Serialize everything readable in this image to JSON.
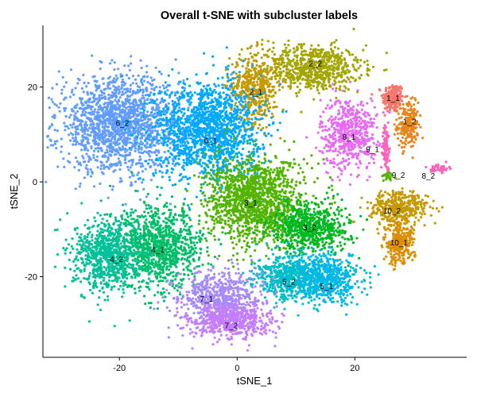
{
  "chart_data": {
    "type": "scatter",
    "title": "Overall t-SNE with subcluster labels",
    "xlabel": "tSNE_1",
    "ylabel": "tSNE_2",
    "xlim": [
      -33,
      39
    ],
    "ylim": [
      -37,
      33
    ],
    "x_ticks": [
      -20,
      0,
      20
    ],
    "y_ticks": [
      20,
      0,
      -20
    ],
    "grid": false,
    "legend": "none",
    "clusters": [
      {
        "label": "1_1",
        "color": "#F8766D",
        "cx": 26.5,
        "cy": 17.7,
        "sx": 1.2,
        "sy": 2.1,
        "n": 220
      },
      {
        "label": "1_2",
        "color": "#E7861B",
        "cx": 29.0,
        "cy": 12.0,
        "sx": 1.2,
        "sy": 3.2,
        "n": 220
      },
      {
        "label": "2_2",
        "color": "#A3A500",
        "cx": 13.0,
        "cy": 24.0,
        "sx": 5.5,
        "sy": 3.2,
        "n": 700
      },
      {
        "label": "2_1",
        "color": "#C49A00",
        "cx": 3.0,
        "cy": 20.0,
        "sx": 2.8,
        "sy": 5.0,
        "n": 450
      },
      {
        "label": "8_1",
        "color": "#E76BF3",
        "cx": 19.0,
        "cy": 10.3,
        "sx": 3.2,
        "sy": 5.0,
        "n": 550
      },
      {
        "label": "9_1",
        "color": "#FF62BC",
        "cx": 25.3,
        "cy": 7.0,
        "sx": 0.4,
        "sy": 3.0,
        "n": 90
      },
      {
        "label": "9_2",
        "color": "#53B400",
        "cx": 25.5,
        "cy": 1.2,
        "sx": 0.7,
        "sy": 0.6,
        "n": 30
      },
      {
        "label": "8_2",
        "color": "#FF62BC",
        "cx": 34.5,
        "cy": 2.9,
        "sx": 1.0,
        "sy": 0.6,
        "n": 50
      },
      {
        "label": "6_2",
        "color": "#619CFF",
        "cx": -20.0,
        "cy": 12.0,
        "sx": 7.0,
        "sy": 6.5,
        "n": 1700
      },
      {
        "label": "6_1",
        "color": "#00A9FF",
        "cx": -5.0,
        "cy": 11.0,
        "sx": 6.0,
        "sy": 7.0,
        "n": 1500
      },
      {
        "label": "3_1",
        "color": "#53B400",
        "cx": 3.0,
        "cy": -4.0,
        "sx": 5.5,
        "sy": 6.0,
        "n": 1400
      },
      {
        "label": "3_2",
        "color": "#00B81F",
        "cx": 12.5,
        "cy": -9.5,
        "sx": 4.5,
        "sy": 3.5,
        "n": 650
      },
      {
        "label": "10_2",
        "color": "#C49A00",
        "cx": 27.5,
        "cy": -5.5,
        "sx": 3.2,
        "sy": 2.5,
        "n": 380
      },
      {
        "label": "10_1",
        "color": "#DB8E00",
        "cx": 27.5,
        "cy": -13.0,
        "sx": 1.8,
        "sy": 3.0,
        "n": 260
      },
      {
        "label": "4_1",
        "color": "#00BE67",
        "cx": -13.5,
        "cy": -14.0,
        "sx": 5.0,
        "sy": 5.5,
        "n": 1050
      },
      {
        "label": "4_2",
        "color": "#00C19A",
        "cx": -22.0,
        "cy": -15.5,
        "sx": 3.8,
        "sy": 5.0,
        "n": 750
      },
      {
        "label": "5_2",
        "color": "#00BFC4",
        "cx": 9.0,
        "cy": -20.0,
        "sx": 4.0,
        "sy": 3.2,
        "n": 550
      },
      {
        "label": "5_1",
        "color": "#00B8E7",
        "cx": 15.0,
        "cy": -20.5,
        "sx": 4.0,
        "sy": 3.2,
        "n": 550
      },
      {
        "label": "7_1",
        "color": "#A58AFF",
        "cx": -3.0,
        "cy": -24.5,
        "sx": 4.5,
        "sy": 4.0,
        "n": 650
      },
      {
        "label": "7_2",
        "color": "#C77CFF",
        "cx": -1.0,
        "cy": -29.5,
        "sx": 4.8,
        "sy": 2.6,
        "n": 500
      }
    ],
    "labels": [
      {
        "text": "1_1",
        "x": 26.5,
        "y": 17.7
      },
      {
        "text": "1_2",
        "x": 29.3,
        "y": 12.7
      },
      {
        "text": "2_2",
        "x": 13.3,
        "y": 25.0
      },
      {
        "text": "2_1",
        "x": 3.2,
        "y": 18.9
      },
      {
        "text": "8_1",
        "x": 19.0,
        "y": 9.5
      },
      {
        "text": "9_1",
        "x": 23.0,
        "y": 6.9
      },
      {
        "text": "9_2",
        "x": 27.4,
        "y": 1.4
      },
      {
        "text": "8_2",
        "x": 32.5,
        "y": 1.3
      },
      {
        "text": "6_2",
        "x": -19.5,
        "y": 12.4
      },
      {
        "text": "6_1",
        "x": -4.5,
        "y": 8.7
      },
      {
        "text": "3_1",
        "x": 2.3,
        "y": -4.4
      },
      {
        "text": "3_2",
        "x": 12.3,
        "y": -9.6
      },
      {
        "text": "10_2",
        "x": 26.3,
        "y": -6.1
      },
      {
        "text": "10_1",
        "x": 27.5,
        "y": -12.8
      },
      {
        "text": "4_1",
        "x": -13.5,
        "y": -14.3
      },
      {
        "text": "4_2",
        "x": -20.5,
        "y": -16.3
      },
      {
        "text": "5_2",
        "x": 8.8,
        "y": -21.1
      },
      {
        "text": "5_1",
        "x": 15.2,
        "y": -22.0
      },
      {
        "text": "7_1",
        "x": -5.2,
        "y": -24.7
      },
      {
        "text": "7_2",
        "x": -1.0,
        "y": -30.3
      }
    ]
  }
}
